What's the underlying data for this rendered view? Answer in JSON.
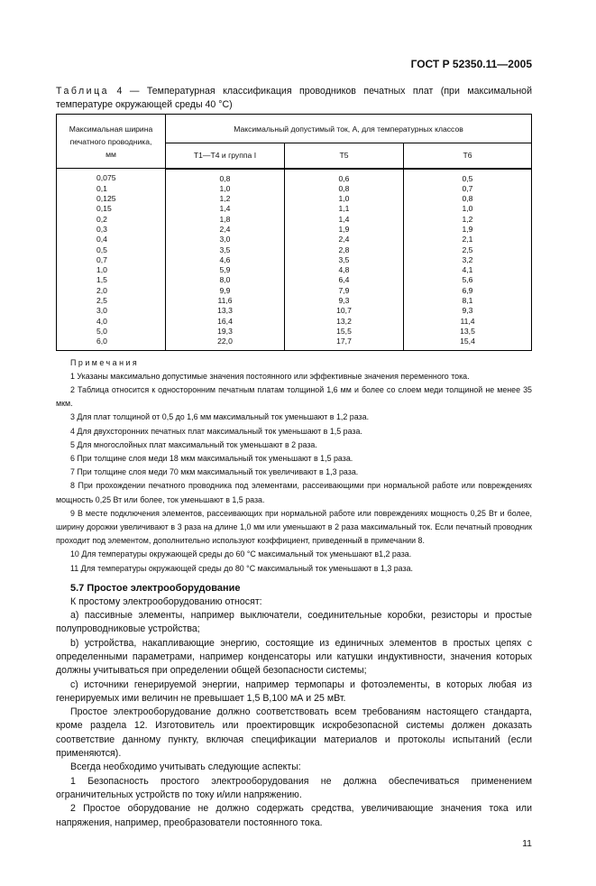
{
  "header": "ГОСТ Р 52350.11—2005",
  "caption": {
    "label": "Таблица",
    "text": " 4 — Температурная классификация проводников печатных плат (при максимальной температуре окружающей среды 40 °С)"
  },
  "table": {
    "col0": "Максимальная ширина печатного проводника, мм",
    "group": "Максимальный допустимый ток, А, для температурных классов",
    "cols": [
      "Т1—Т4 и группа I",
      "Т5",
      "Т6"
    ],
    "rows": [
      [
        "0,075",
        "0,8",
        "0,6",
        "0,5"
      ],
      [
        "0,1",
        "1,0",
        "0,8",
        "0,7"
      ],
      [
        "0,125",
        "1,2",
        "1,0",
        "0,8"
      ],
      [
        "0,15",
        "1,4",
        "1,1",
        "1,0"
      ],
      [
        "0,2",
        "1,8",
        "1,4",
        "1,2"
      ],
      [
        "0,3",
        "2,4",
        "1,9",
        "1,9"
      ],
      [
        "0,4",
        "3,0",
        "2,4",
        "2,1"
      ],
      [
        "0,5",
        "3,5",
        "2,8",
        "2,5"
      ],
      [
        "0,7",
        "4,6",
        "3,5",
        "3,2"
      ],
      [
        "1,0",
        "5,9",
        "4,8",
        "4,1"
      ],
      [
        "1,5",
        "8,0",
        "6,4",
        "5,6"
      ],
      [
        "2,0",
        "9,9",
        "7,9",
        "6,9"
      ],
      [
        "2,5",
        "11,6",
        "9,3",
        "8,1"
      ],
      [
        "3,0",
        "13,3",
        "10,7",
        "9,3"
      ],
      [
        "4,0",
        "16,4",
        "13,2",
        "11,4"
      ],
      [
        "5,0",
        "19,3",
        "15,5",
        "13,5"
      ],
      [
        "6,0",
        "22,0",
        "17,7",
        "15,4"
      ]
    ]
  },
  "notes": {
    "title": "Примечания",
    "items": [
      "1 Указаны максимально допустимые значения постоянного или эффективные значения переменного тока.",
      "2 Таблица относится к односторонним печатным платам толщиной 1,6 мм и более со слоем меди толщиной не менее 35 мкм.",
      "3 Для плат толщиной от 0,5 до 1,6 мм максимальный ток уменьшают в 1,2 раза.",
      "4 Для двухсторонних печатных плат максимальный ток уменьшают в 1,5 раза.",
      "5 Для многослойных плат максимальный ток уменьшают в 2 раза.",
      "6 При толщине слоя меди 18 мкм максимальный ток уменьшают в 1,5 раза.",
      "7 При толщине слоя меди 70 мкм максимальный ток увеличивают в 1,3 раза.",
      "8 При прохождении печатного проводника под элементами, рассеивающими при нормальной работе или повреждениях мощность 0,25 Вт или более, ток уменьшают в 1,5 раза.",
      "9 В месте подключения элементов, рассеивающих при нормальной работе или повреждениях мощность 0,25 Вт и более, ширину дорожки увеличивают в 3 раза на длине 1,0 мм или уменьшают в 2 раза максимальный ток. Если печатный проводник проходит под элементом, дополнительно используют коэффициент, приведенный в примечании 8.",
      "10 Для температуры окружающей среды до 60 °С максимальный ток уменьшают в1,2 раза.",
      "11 Для температуры окружающей среды до 80 °С максимальный ток уменьшают в 1,3 раза."
    ]
  },
  "section": {
    "title": "5.7 Простое электрооборудование",
    "paragraphs": [
      "К простому электрооборудованию относят:",
      "a) пассивные элементы, например выключатели, соединительные коробки, резисторы и простые полупроводниковые устройства;",
      "b) устройства, накапливающие энергию, состоящие из единичных элементов в простых цепях с определенными параметрами, например конденсаторы или катушки индуктивности, значения которых должны учитываться при определении общей безопасности системы;",
      "c) источники генерируемой энергии, например термопары и фотоэлементы, в которых любая из генерируемых ими величин не превышает 1,5 В,100 мА и 25 мВт.",
      "Простое электрооборудование должно соответствовать всем требованиям настоящего стандарта, кроме раздела 12. Изготовитель или проектировщик искробезопасной системы должен доказать соответствие данному пункту, включая спецификации материалов и протоколы испытаний (если применяются).",
      "Всегда необходимо учитывать следующие аспекты:",
      "1 Безопасность простого электрооборудования не должна обеспечиваться применением ограничительных устройств по току и/или напряжению.",
      "2 Простое оборудование не должно содержать средства, увеличивающие значения тока или напряжения, например, преобразователи постоянного тока."
    ]
  },
  "page_number": "11"
}
